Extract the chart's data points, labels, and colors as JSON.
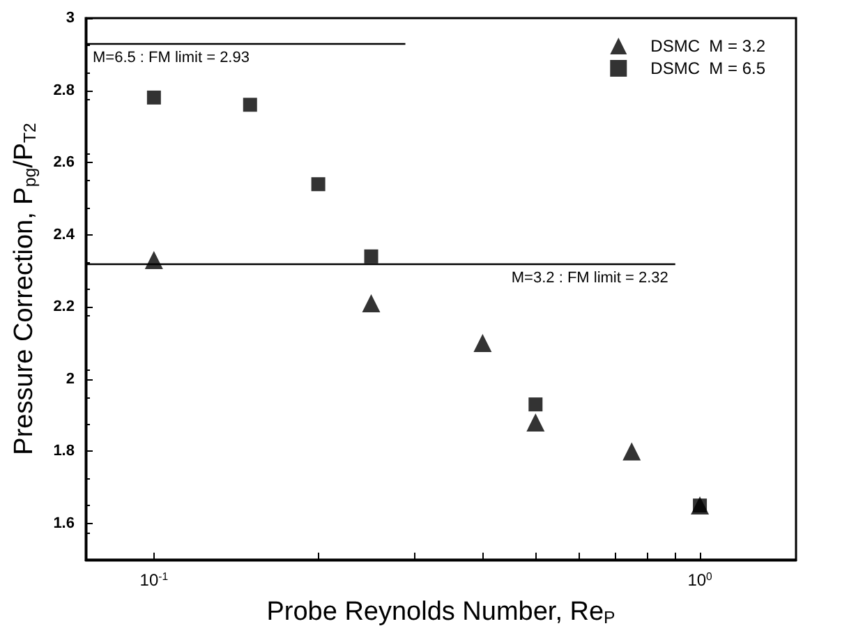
{
  "chart_data": {
    "type": "scatter",
    "xlabel": "Probe Reynolds Number, Re$_{P}$",
    "ylabel": "Pressure Correction, P$_{pg}$/P$_{T2}$",
    "log": "x",
    "xlim": [
      0.075,
      1.5
    ],
    "ylim": [
      1.5,
      3.0
    ],
    "xticks": [
      {
        "value": 0.1,
        "label": "10$^{-1}$"
      },
      {
        "value": 0.2,
        "label": null
      },
      {
        "value": 0.3,
        "label": null
      },
      {
        "value": 0.4,
        "label": null
      },
      {
        "value": 0.5,
        "label": null
      },
      {
        "value": 0.6,
        "label": null
      },
      {
        "value": 0.7,
        "label": null
      },
      {
        "value": 0.8,
        "label": null
      },
      {
        "value": 0.9,
        "label": null
      },
      {
        "value": 1,
        "label": "10$^{0}$"
      }
    ],
    "yticks": [
      1.6,
      1.8,
      2.0,
      2.2,
      2.4,
      2.6,
      2.8,
      3.0
    ],
    "legend": "top right",
    "grid": false,
    "series": [
      {
        "name": "DSMC  M = 3.2",
        "color": "#000000",
        "marker": "triangle",
        "x": [
          0.1,
          0.25,
          0.4,
          0.5,
          0.75,
          1.0
        ],
        "values": [
          2.33,
          2.21,
          2.1,
          1.88,
          1.8,
          1.65
        ]
      },
      {
        "name": "DSMC  M = 6.5",
        "color": "#000000",
        "marker": "square",
        "x": [
          0.1,
          0.15,
          0.2,
          0.25,
          0.5,
          1.0
        ],
        "values": [
          2.78,
          2.76,
          2.54,
          2.34,
          1.93,
          1.65
        ]
      }
    ],
    "ref_lines": [
      {
        "axis": "y",
        "value": 2.93,
        "label": "M=6.5 : FM limit = 2.93",
        "color": "#000000",
        "line_style": "solid"
      },
      {
        "axis": "y",
        "value": 2.32,
        "label": "M=3.2 : FM limit = 2.32",
        "color": "#000000",
        "line_style": "solid"
      }
    ]
  }
}
